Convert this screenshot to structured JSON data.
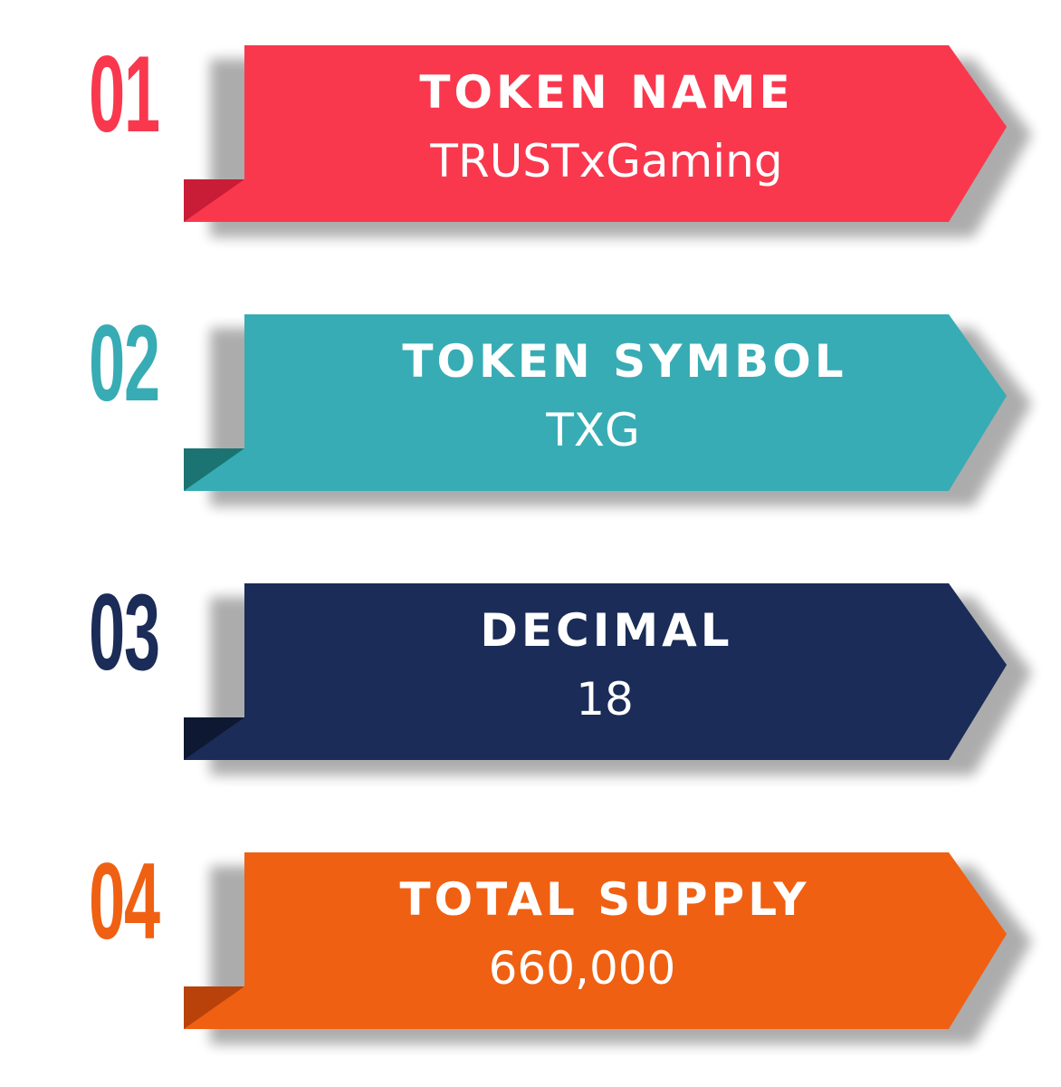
{
  "items": [
    {
      "number": "01",
      "title": "TOKEN  NAME",
      "value": "TRUSTxGaming",
      "color": "#F9384E",
      "fold_color": "#C91C36"
    },
    {
      "number": "02",
      "title": "TOKEN  SYMBOL",
      "value": "TXG",
      "color": "#37ACB4",
      "fold_color": "#1B7472"
    },
    {
      "number": "03",
      "title": "DECIMAL",
      "value": "18",
      "color": "#1A2C57",
      "fold_color": "#0E1832"
    },
    {
      "number": "04",
      "title": "TOTAL  SUPPLY",
      "value": "660,000",
      "color": "#F06012",
      "fold_color": "#B8420A"
    }
  ]
}
